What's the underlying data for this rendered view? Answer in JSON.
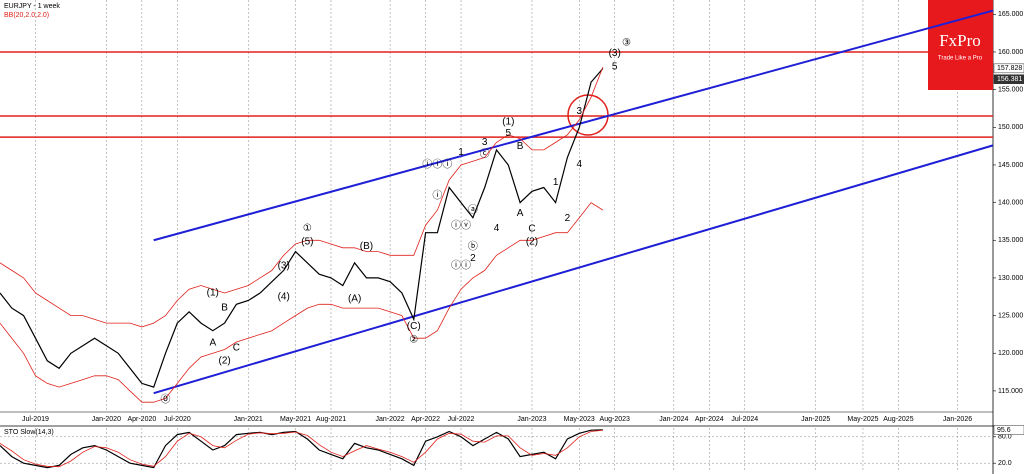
{
  "chart_data": [
    {
      "type": "line",
      "title": "EURJPY - 1 week",
      "subtitle": "BB(20,2.0,2.0)",
      "x": [
        "2019-04",
        "2019-05",
        "2019-06",
        "2019-07",
        "2019-08",
        "2019-09",
        "2019-10",
        "2019-11",
        "2019-12",
        "2020-01",
        "2020-02",
        "2020-03",
        "2020-04",
        "2020-05",
        "2020-06",
        "2020-07",
        "2020-08",
        "2020-09",
        "2020-10",
        "2020-11",
        "2020-12",
        "2021-01",
        "2021-02",
        "2021-03",
        "2021-04",
        "2021-05",
        "2021-06",
        "2021-07",
        "2021-08",
        "2021-09",
        "2021-10",
        "2021-11",
        "2021-12",
        "2022-01",
        "2022-02",
        "2022-03",
        "2022-04",
        "2022-05",
        "2022-06",
        "2022-07",
        "2022-08",
        "2022-09",
        "2022-10",
        "2022-11",
        "2022-12",
        "2023-01",
        "2023-02",
        "2023-03",
        "2023-04",
        "2023-05",
        "2023-06",
        "2023-07"
      ],
      "series": [
        {
          "color": "#000000",
          "values": [
            128,
            126,
            125,
            122,
            119,
            118,
            120,
            121,
            122,
            121,
            120,
            118,
            116,
            115.5,
            120,
            124,
            125.5,
            124,
            123,
            124,
            126.5,
            127,
            128,
            129.5,
            131,
            133.5,
            132,
            130.5,
            130,
            129,
            132,
            130,
            130,
            129.5,
            128,
            124.5,
            136,
            136,
            142,
            140,
            138,
            142,
            147,
            145,
            140,
            141.5,
            142,
            140,
            146,
            150,
            156,
            157.8
          ]
        },
        {
          "color": "#e0201b",
          "values": [
            132,
            131,
            130,
            128,
            127,
            126,
            125,
            125,
            124.5,
            124,
            124,
            124,
            123.5,
            124,
            125,
            127,
            128.5,
            129,
            128.5,
            128,
            128.5,
            129,
            130,
            131,
            133,
            134.5,
            135,
            135,
            134.5,
            134,
            134,
            133.5,
            133.5,
            133,
            133,
            133,
            137,
            139,
            143,
            145,
            145.5,
            146,
            148,
            149,
            148.5,
            147,
            147,
            148,
            149,
            151,
            154,
            158
          ]
        },
        {
          "color": "#e0201b",
          "values": [
            124,
            122,
            120,
            117,
            116,
            115.5,
            116,
            116.5,
            117,
            117,
            116.5,
            115,
            113.5,
            113.5,
            114,
            116,
            118,
            119.5,
            120,
            120.5,
            121.5,
            122,
            122.5,
            123,
            124,
            125,
            126,
            126.5,
            126.5,
            126,
            126,
            126,
            126,
            125.5,
            125,
            122,
            122,
            123,
            126,
            128.5,
            130,
            131,
            133,
            134,
            135,
            135,
            135.5,
            136,
            136,
            138,
            140,
            139
          ]
        }
      ],
      "xlim": [
        "2019-04",
        "2026-04"
      ],
      "ylim": [
        112.2,
        166.9
      ],
      "grid": true,
      "xticks": [
        {
          "value": "2019-07",
          "label": "Jul-2019"
        },
        {
          "value": "2020-01",
          "label": "Jan-2020"
        },
        {
          "value": "2020-04",
          "label": "Apr-2020"
        },
        {
          "value": "2020-07",
          "label": "Jul-2020"
        },
        {
          "value": "2021-01",
          "label": "Jan-2021"
        },
        {
          "value": "2021-05",
          "label": "May-2021"
        },
        {
          "value": "2021-08",
          "label": "Aug-2021"
        },
        {
          "value": "2022-01",
          "label": "Jan-2022"
        },
        {
          "value": "2022-04",
          "label": "Apr-2022"
        },
        {
          "value": "2022-07",
          "label": "Jul-2022"
        },
        {
          "value": "2023-01",
          "label": "Jan-2023"
        },
        {
          "value": "2023-05",
          "label": "May-2023"
        },
        {
          "value": "2023-08",
          "label": "Aug-2023"
        },
        {
          "value": "2024-01",
          "label": "Jan-2024"
        },
        {
          "value": "2024-04",
          "label": "Apr-2024"
        },
        {
          "value": "2024-07",
          "label": "Jul-2024"
        },
        {
          "value": "2025-01",
          "label": "Jan-2025"
        },
        {
          "value": "2025-05",
          "label": "May-2025"
        },
        {
          "value": "2025-08",
          "label": "Aug-2025"
        },
        {
          "value": "2026-01",
          "label": "Jan-2026"
        }
      ],
      "yticks": [
        {
          "value": 115,
          "label": "115.000"
        },
        {
          "value": 120,
          "label": "120.000"
        },
        {
          "value": 125,
          "label": "125.000"
        },
        {
          "value": 130,
          "label": "130.000"
        },
        {
          "value": 135,
          "label": "135.000"
        },
        {
          "value": 140,
          "label": "140.000"
        },
        {
          "value": 145,
          "label": "145.000"
        },
        {
          "value": 150,
          "label": "150.000"
        },
        {
          "value": 155,
          "label": "155.000"
        },
        {
          "value": 160,
          "label": "160.000"
        },
        {
          "value": 165,
          "label": "165.000"
        }
      ],
      "price_labels": [
        {
          "value": 157.828,
          "label": "157.828"
        },
        {
          "value": 156.381,
          "label": "156.381"
        }
      ],
      "levels": {
        "color": "#e0201b",
        "values": [
          160,
          151.5,
          148.7
        ]
      },
      "trendlines": [
        {
          "color": "#1f1fd6",
          "x": [
            "2020-05",
            "2026-04"
          ],
          "values": [
            135,
            165.5
          ]
        },
        {
          "color": "#1f1fd6",
          "x": [
            "2020-05",
            "2026-04"
          ],
          "values": [
            114.7,
            147.6
          ]
        }
      ],
      "annotations": [
        {
          "text": "⓪",
          "x": "2020-06",
          "y": 113.8
        },
        {
          "text": "①",
          "x": "2021-06",
          "y": 136.6
        },
        {
          "text": "(5)",
          "x": "2021-06",
          "y": 134.8
        },
        {
          "text": "(3)",
          "x": "2021-04",
          "y": 131.6
        },
        {
          "text": "(4)",
          "x": "2021-04",
          "y": 127.5
        },
        {
          "text": "(1)",
          "x": "2020-10",
          "y": 128
        },
        {
          "text": "B",
          "x": "2020-11",
          "y": 126
        },
        {
          "text": "A",
          "x": "2020-10",
          "y": 121.4
        },
        {
          "text": "C",
          "x": "2020-12",
          "y": 120.7
        },
        {
          "text": "(2)",
          "x": "2020-11",
          "y": 119
        },
        {
          "text": "(B)",
          "x": "2021-11",
          "y": 134.2
        },
        {
          "text": "(A)",
          "x": "2021-10",
          "y": 127.2
        },
        {
          "text": "(C)",
          "x": "2022-03",
          "y": 123.6
        },
        {
          "text": "②",
          "x": "2022-03",
          "y": 121.8
        },
        {
          "text": "ⓘ",
          "x": "2022-05",
          "y": 140.9
        },
        {
          "text": "ⓘⓘⓘ",
          "x": "2022-05",
          "y": 145
        },
        {
          "text": "ⓘⓘ",
          "x": "2022-07",
          "y": 131.6
        },
        {
          "text": "ⓘⓥ",
          "x": "2022-07",
          "y": 136.9
        },
        {
          "text": "1",
          "x": "2022-07",
          "y": 146.7
        },
        {
          "text": "ⓐ",
          "x": "2022-08",
          "y": 139
        },
        {
          "text": "ⓑ",
          "x": "2022-08",
          "y": 134.1
        },
        {
          "text": "ⓒ",
          "x": "2022-09",
          "y": 146.4
        },
        {
          "text": "2",
          "x": "2022-08",
          "y": 132.6
        },
        {
          "text": "4",
          "x": "2022-10",
          "y": 136.6
        },
        {
          "text": "3",
          "x": "2022-09",
          "y": 148
        },
        {
          "text": "(1)",
          "x": "2022-11",
          "y": 150.7
        },
        {
          "text": "5",
          "x": "2022-11",
          "y": 149.2
        },
        {
          "text": "A",
          "x": "2022-12",
          "y": 138.6
        },
        {
          "text": "B",
          "x": "2022-12",
          "y": 147.5
        },
        {
          "text": "C",
          "x": "2023-01",
          "y": 136.5
        },
        {
          "text": "(2)",
          "x": "2023-01",
          "y": 134.8
        },
        {
          "text": "1",
          "x": "2023-03",
          "y": 142.7
        },
        {
          "text": "2",
          "x": "2023-04",
          "y": 137.9
        },
        {
          "text": "3",
          "x": "2023-05",
          "y": 152.1
        },
        {
          "text": "4",
          "x": "2023-05",
          "y": 145.1
        },
        {
          "text": "5",
          "x": "2023-08",
          "y": 158
        },
        {
          "text": "(3)",
          "x": "2023-08",
          "y": 159.8
        },
        {
          "text": "③",
          "x": "2023-09",
          "y": 161.2
        }
      ]
    },
    {
      "type": "line",
      "title": "STO Slow(14,3)",
      "x": [
        "2019-04",
        "2019-05",
        "2019-06",
        "2019-07",
        "2019-08",
        "2019-09",
        "2019-10",
        "2019-11",
        "2019-12",
        "2020-01",
        "2020-02",
        "2020-03",
        "2020-04",
        "2020-05",
        "2020-06",
        "2020-07",
        "2020-08",
        "2020-09",
        "2020-10",
        "2020-11",
        "2020-12",
        "2021-01",
        "2021-02",
        "2021-03",
        "2021-04",
        "2021-05",
        "2021-06",
        "2021-07",
        "2021-08",
        "2021-09",
        "2021-10",
        "2021-11",
        "2021-12",
        "2022-01",
        "2022-02",
        "2022-03",
        "2022-04",
        "2022-05",
        "2022-06",
        "2022-07",
        "2022-08",
        "2022-09",
        "2022-10",
        "2022-11",
        "2022-12",
        "2023-01",
        "2023-02",
        "2023-03",
        "2023-04",
        "2023-05",
        "2023-06",
        "2023-07"
      ],
      "series": [
        {
          "color": "#000000",
          "values": [
            60,
            35,
            20,
            15,
            10,
            15,
            40,
            55,
            60,
            50,
            35,
            20,
            15,
            10,
            60,
            85,
            90,
            70,
            50,
            60,
            85,
            88,
            90,
            85,
            90,
            92,
            75,
            50,
            40,
            30,
            65,
            55,
            50,
            40,
            30,
            15,
            70,
            80,
            92,
            80,
            60,
            75,
            90,
            75,
            35,
            40,
            45,
            30,
            75,
            88,
            95,
            95.6
          ]
        },
        {
          "color": "#e0201b",
          "values": [
            65,
            48,
            28,
            18,
            13,
            12,
            25,
            45,
            58,
            55,
            45,
            28,
            18,
            13,
            35,
            70,
            88,
            80,
            60,
            55,
            72,
            86,
            89,
            87,
            88,
            91,
            83,
            62,
            45,
            35,
            48,
            60,
            52,
            45,
            35,
            22,
            45,
            75,
            88,
            86,
            70,
            68,
            82,
            82,
            55,
            38,
            42,
            38,
            55,
            80,
            92,
            95
          ]
        }
      ],
      "xlim": [
        "2019-04",
        "2026-04"
      ],
      "ylim": [
        0,
        100
      ],
      "yticks": [
        {
          "value": 20,
          "label": "20.0"
        },
        {
          "value": 80,
          "label": "80.0"
        }
      ],
      "last_label": {
        "value": 95.6,
        "label": "95.6"
      }
    }
  ],
  "logo": {
    "name": "FxPro",
    "tagline": "Trade Like a Pro"
  }
}
